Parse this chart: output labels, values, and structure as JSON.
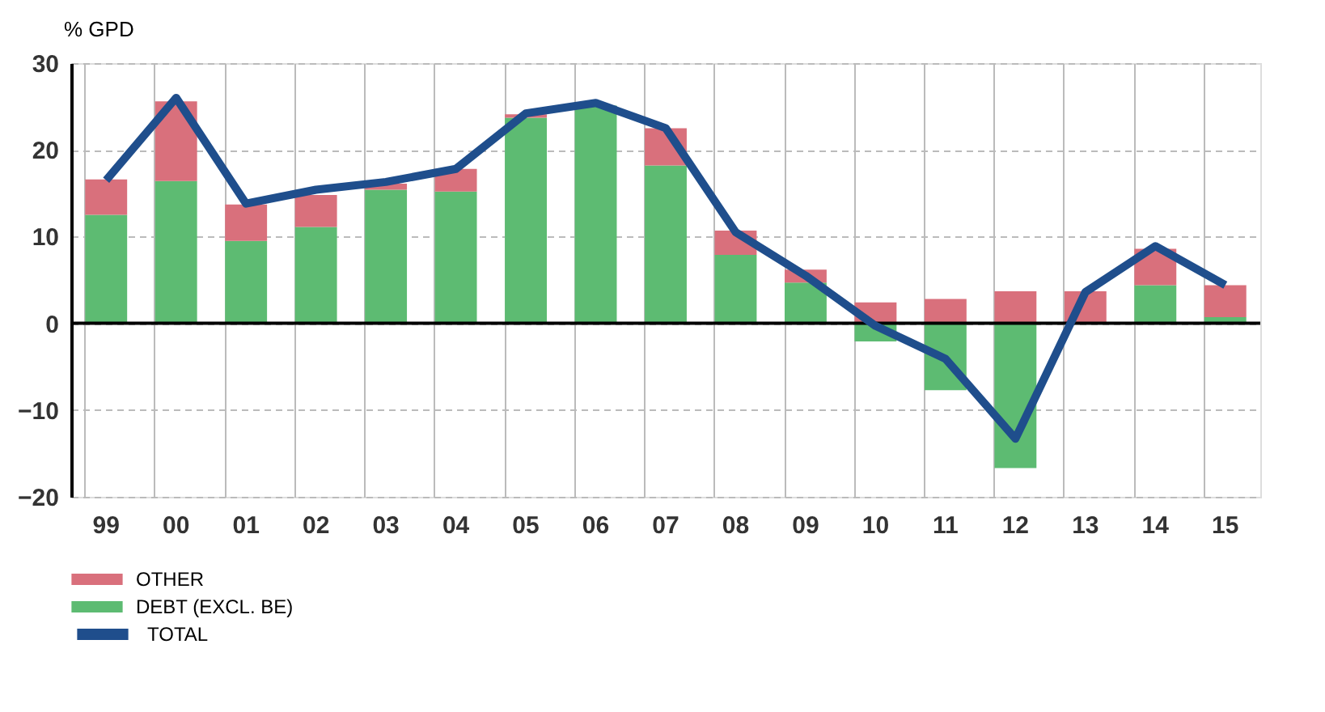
{
  "chart_data": {
    "type": "bar",
    "stacked": true,
    "ylabel": "% GPD",
    "categories": [
      "99",
      "00",
      "01",
      "02",
      "03",
      "04",
      "05",
      "06",
      "07",
      "08",
      "09",
      "10",
      "11",
      "12",
      "13",
      "14",
      "15"
    ],
    "series": [
      {
        "name": "DEBT (EXCL. BE)",
        "color": "#5dbb72",
        "values": [
          12.5,
          16.4,
          9.5,
          11.1,
          15.4,
          15.2,
          23.7,
          25.1,
          18.2,
          7.9,
          4.7,
          -2.1,
          -7.7,
          -16.7,
          null,
          4.4,
          0.7
        ]
      },
      {
        "name": "OTHER",
        "color": "#d9707c",
        "values": [
          4.1,
          9.2,
          4.2,
          3.7,
          0.7,
          2.6,
          0.4,
          null,
          4.3,
          2.8,
          1.5,
          2.4,
          2.8,
          3.7,
          3.7,
          4.2,
          3.7
        ]
      },
      {
        "name": "TOTAL",
        "type": "line",
        "color": "#1f4e8c",
        "values": [
          16.5,
          26,
          13.8,
          15.4,
          16.3,
          17.8,
          24.2,
          25.4,
          22.5,
          10.5,
          5.5,
          -0.3,
          -4.1,
          -13.3,
          3.6,
          8.9,
          4.4
        ]
      }
    ],
    "ylim": [
      -20,
      30
    ],
    "yticks": [
      -20,
      -10,
      0,
      10,
      20,
      30
    ],
    "grid": true,
    "legend": "bottom left",
    "ref_lines": [
      {
        "axis": "y",
        "value": 0,
        "color": "#000000"
      }
    ]
  }
}
